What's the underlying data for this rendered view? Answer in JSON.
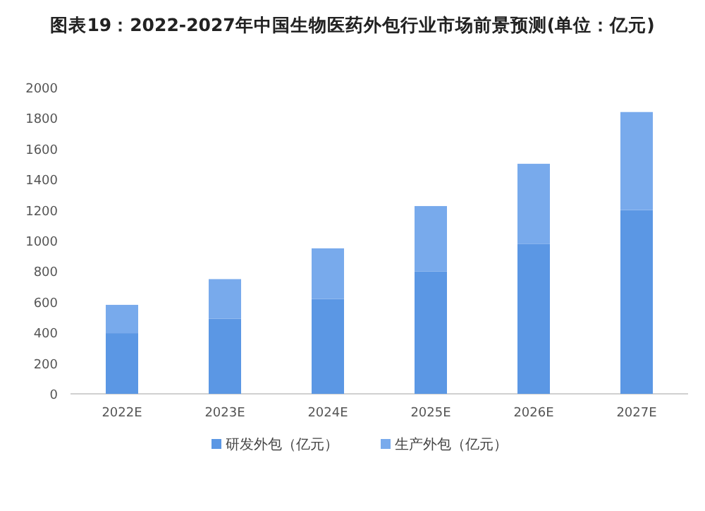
{
  "chart_data": {
    "type": "bar",
    "title": "图表19：2022-2027年中国生物医药外包行业市场前景预测(单位：亿元)",
    "categories": [
      "2022E",
      "2023E",
      "2024E",
      "2025E",
      "2026E",
      "2027E"
    ],
    "stacked": true,
    "series": [
      {
        "name": "研发外包（亿元）",
        "color": "#5b97e4",
        "values": [
          396,
          491,
          620,
          800,
          980,
          1200
        ]
      },
      {
        "name": "生产外包（亿元）",
        "color": "#78aaec",
        "values": [
          185,
          258,
          330,
          426,
          522,
          640
        ]
      }
    ],
    "ylim": [
      0,
      2000
    ],
    "yticks": [
      0,
      200,
      400,
      600,
      800,
      1000,
      1200,
      1400,
      1600,
      1800,
      2000
    ],
    "grid": false,
    "legend": "bottom"
  }
}
